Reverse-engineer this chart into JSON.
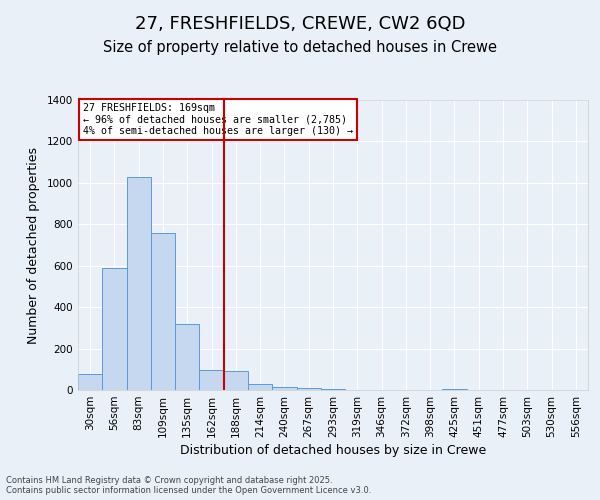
{
  "title_line1": "27, FRESHFIELDS, CREWE, CW2 6QD",
  "title_line2": "Size of property relative to detached houses in Crewe",
  "xlabel": "Distribution of detached houses by size in Crewe",
  "ylabel": "Number of detached properties",
  "categories": [
    "30sqm",
    "56sqm",
    "83sqm",
    "109sqm",
    "135sqm",
    "162sqm",
    "188sqm",
    "214sqm",
    "240sqm",
    "267sqm",
    "293sqm",
    "319sqm",
    "346sqm",
    "372sqm",
    "398sqm",
    "425sqm",
    "451sqm",
    "477sqm",
    "503sqm",
    "530sqm",
    "556sqm"
  ],
  "values": [
    75,
    590,
    1030,
    760,
    320,
    95,
    90,
    30,
    15,
    10,
    5,
    0,
    0,
    0,
    0,
    5,
    0,
    0,
    0,
    0,
    0
  ],
  "bar_color": "#c5d8f0",
  "bar_edge_color": "#5b9bd5",
  "vline_x_index": 5.5,
  "vline_color": "#cc0000",
  "annotation_text": "27 FRESHFIELDS: 169sqm\n← 96% of detached houses are smaller (2,785)\n4% of semi-detached houses are larger (130) →",
  "annotation_box_edgecolor": "#cc0000",
  "ylim": [
    0,
    1400
  ],
  "yticks": [
    0,
    200,
    400,
    600,
    800,
    1000,
    1200,
    1400
  ],
  "bg_color": "#eaf0f8",
  "grid_color": "#ffffff",
  "footer_line1": "Contains HM Land Registry data © Crown copyright and database right 2025.",
  "footer_line2": "Contains public sector information licensed under the Open Government Licence v3.0.",
  "title_fontsize": 13,
  "subtitle_fontsize": 10.5,
  "tick_fontsize": 7.5,
  "label_fontsize": 9
}
